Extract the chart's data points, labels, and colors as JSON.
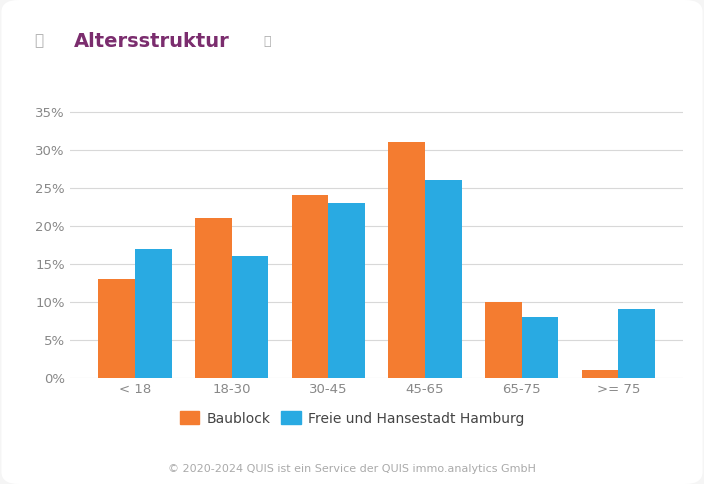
{
  "title": "Altersstruktur",
  "categories": [
    "< 18",
    "18-30",
    "30-45",
    "45-65",
    "65-75",
    ">= 75"
  ],
  "baublock": [
    13,
    21,
    24,
    31,
    10,
    1
  ],
  "hamburg": [
    17,
    16,
    23,
    26,
    8,
    9
  ],
  "color_baublock": "#f47c30",
  "color_hamburg": "#29aae2",
  "ylabel_ticks": [
    0,
    5,
    10,
    15,
    20,
    25,
    30,
    35
  ],
  "ylim": [
    0,
    37
  ],
  "legend_baublock": "Baublock",
  "legend_hamburg": "Freie und Hansestadt Hamburg",
  "footer": "© 2020-2024 QUIS ist ein Service der QUIS immo.analytics GmbH",
  "background_color": "#f5f5f5",
  "card_color": "#ffffff",
  "grid_color": "#d8d8d8",
  "title_color": "#7b2d6e",
  "icon_color": "#aaaaaa",
  "tick_color": "#888888",
  "legend_color": "#444444",
  "footer_color": "#aaaaaa",
  "bar_width": 0.38,
  "title_fontsize": 14,
  "tick_fontsize": 9.5,
  "legend_fontsize": 10,
  "footer_fontsize": 8
}
